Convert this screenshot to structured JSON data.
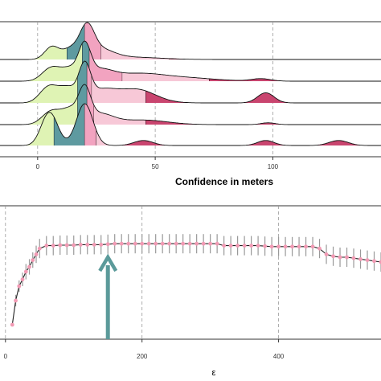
{
  "chart_data": [
    {
      "type": "area",
      "subtype": "ridgeline-density",
      "title": "",
      "xlabel": "Confidence in meters",
      "ylabel": "",
      "xlim": [
        -16,
        146
      ],
      "xticks": [
        0,
        50,
        100
      ],
      "grid": "vertical dashed at major ticks",
      "legend": "none",
      "band_colors": [
        "#dff3b4",
        "#5e9aa0",
        "#f2a3c0",
        "#f7c8d7",
        "#c9456f"
      ],
      "band_boundaries": [
        [
          12.5,
          20,
          27,
          56
        ],
        [
          19,
          22,
          36,
          73
        ],
        [
          17,
          21,
          23,
          46
        ],
        [
          17,
          21,
          24,
          46
        ],
        [
          7,
          20,
          25,
          31
        ]
      ],
      "ridges": [
        {
          "peaks": [
            [
              6,
              3.0,
              0.45
            ],
            [
              14,
              3.5,
              0.35
            ],
            [
              21,
              3.0,
              1.0
            ],
            [
              26,
              6.0,
              0.35
            ],
            [
              40,
              12,
              0.08
            ]
          ]
        },
        {
          "peaks": [
            [
              6,
              4.0,
              0.45
            ],
            [
              14,
              3.5,
              0.35
            ],
            [
              20,
              2.5,
              1.0
            ],
            [
              26,
              6.0,
              0.35
            ],
            [
              42,
              10,
              0.2
            ],
            [
              60,
              14,
              0.12
            ],
            [
              95,
              4,
              0.08
            ]
          ]
        },
        {
          "peaks": [
            [
              5,
              4.0,
              0.5
            ],
            [
              13,
              3.5,
              0.4
            ],
            [
              20,
              2.5,
              1.0
            ],
            [
              27,
              6.0,
              0.35
            ],
            [
              42,
              8,
              0.4
            ],
            [
              97,
              3.5,
              0.3
            ]
          ]
        },
        {
          "peaks": [
            [
              6,
              4.0,
              0.45
            ],
            [
              14,
              3.5,
              0.45
            ],
            [
              20,
              2.5,
              1.0
            ],
            [
              26,
              6.0,
              0.35
            ],
            [
              45,
              10,
              0.15
            ],
            [
              98,
              3,
              0.06
            ]
          ]
        },
        {
          "peaks": [
            [
              5,
              3.5,
              0.8
            ],
            [
              20,
              3.5,
              1.0
            ],
            [
              45,
              4,
              0.12
            ],
            [
              97,
              3.5,
              0.12
            ],
            [
              128,
              4,
              0.12
            ]
          ]
        }
      ]
    },
    {
      "type": "line",
      "title": "",
      "xlabel": "ε",
      "ylabel": "",
      "xlim": [
        -8,
        550
      ],
      "xticks": [
        0,
        200,
        400
      ],
      "grid": "vertical dashed at major ticks",
      "legend": "none",
      "line_color": "#222222",
      "point_color": "#f29ab4",
      "error_bar_color": "#999999",
      "annotation": {
        "type": "arrow",
        "x": 150,
        "color": "#5b9a9a"
      },
      "x": [
        10,
        15,
        20,
        25,
        30,
        35,
        40,
        45,
        50,
        60,
        70,
        80,
        90,
        100,
        110,
        120,
        130,
        140,
        150,
        160,
        170,
        180,
        190,
        200,
        210,
        220,
        230,
        240,
        250,
        260,
        270,
        280,
        290,
        300,
        310,
        320,
        330,
        340,
        350,
        360,
        370,
        380,
        390,
        400,
        410,
        420,
        430,
        440,
        450,
        460,
        470,
        480,
        490,
        500,
        510,
        520,
        530,
        540,
        550
      ],
      "y": [
        0.05,
        0.3,
        0.45,
        0.52,
        0.6,
        0.65,
        0.72,
        0.78,
        0.84,
        0.87,
        0.87,
        0.875,
        0.875,
        0.875,
        0.88,
        0.88,
        0.88,
        0.88,
        0.885,
        0.89,
        0.89,
        0.89,
        0.89,
        0.89,
        0.89,
        0.89,
        0.89,
        0.89,
        0.89,
        0.89,
        0.89,
        0.89,
        0.89,
        0.89,
        0.89,
        0.87,
        0.87,
        0.87,
        0.87,
        0.87,
        0.87,
        0.865,
        0.86,
        0.86,
        0.86,
        0.86,
        0.86,
        0.86,
        0.86,
        0.84,
        0.78,
        0.76,
        0.75,
        0.75,
        0.74,
        0.73,
        0.72,
        0.71,
        0.7
      ],
      "err": [
        0.0,
        0.06,
        0.06,
        0.07,
        0.08,
        0.08,
        0.08,
        0.09,
        0.1,
        0.1,
        0.1,
        0.1,
        0.1,
        0.1,
        0.1,
        0.1,
        0.1,
        0.1,
        0.1,
        0.1,
        0.1,
        0.1,
        0.1,
        0.1,
        0.1,
        0.1,
        0.1,
        0.1,
        0.1,
        0.1,
        0.1,
        0.1,
        0.1,
        0.1,
        0.1,
        0.1,
        0.1,
        0.1,
        0.1,
        0.1,
        0.1,
        0.1,
        0.1,
        0.1,
        0.1,
        0.1,
        0.1,
        0.1,
        0.1,
        0.1,
        0.1,
        0.1,
        0.1,
        0.1,
        0.1,
        0.1,
        0.1,
        0.1,
        0.1
      ],
      "ylim": [
        0,
        1
      ]
    }
  ]
}
